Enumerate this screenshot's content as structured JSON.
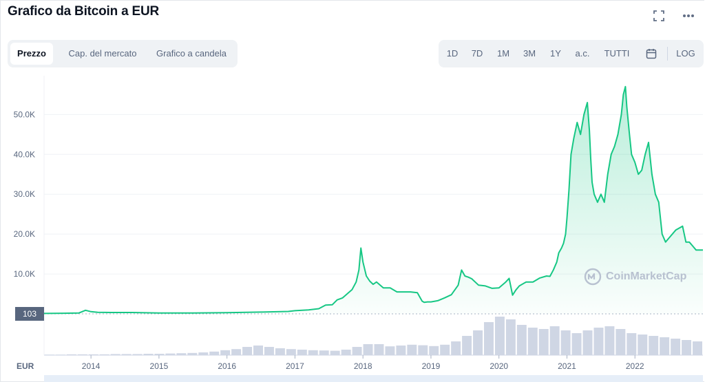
{
  "header": {
    "title": "Grafico da Bitcoin a EUR",
    "fullscreen_icon": "expand-corners-icon",
    "more_icon": "ellipsis-horizontal-icon"
  },
  "tabs": [
    {
      "label": "Prezzo",
      "active": true
    },
    {
      "label": "Cap. del mercato",
      "active": false
    },
    {
      "label": "Grafico a candela",
      "active": false
    }
  ],
  "ranges": [
    "1D",
    "7D",
    "1M",
    "3M",
    "1Y",
    "a.c.",
    "TUTTI"
  ],
  "calendar_icon": "calendar-icon",
  "log_label": "LOG",
  "watermark": "CoinMarketCap",
  "chart_data": {
    "type": "area",
    "currency_label": "EUR",
    "current_price_marker": "103",
    "yticks": [
      "10.0K",
      "20.0K",
      "30.0K",
      "40.0K",
      "50.0K"
    ],
    "ytick_values": [
      10000,
      20000,
      30000,
      40000,
      50000
    ],
    "ylim": [
      0,
      58000
    ],
    "xlim": [
      2013.31,
      2023.0
    ],
    "xticks": [
      "2014",
      "2015",
      "2016",
      "2017",
      "2018",
      "2019",
      "2020",
      "2021",
      "2022"
    ],
    "xtick_values": [
      2014,
      2015,
      2016,
      2017,
      2018,
      2019,
      2020,
      2021,
      2022
    ],
    "colors": {
      "line": "#16c784",
      "volume": "#cfd6e4",
      "grid": "#eff2f5"
    },
    "series": [
      {
        "x": [
          2013.31,
          2013.6,
          2013.82,
          2013.92,
          2014.0,
          2014.1,
          2014.3,
          2014.6,
          2015.0,
          2015.5,
          2016.0,
          2016.5,
          2016.9,
          2017.0,
          2017.2,
          2017.35,
          2017.45,
          2017.55,
          2017.62,
          2017.7,
          2017.78,
          2017.84,
          2017.9,
          2017.94,
          2017.97,
          2018.0,
          2018.05,
          2018.1,
          2018.15,
          2018.2,
          2018.3,
          2018.4,
          2018.5,
          2018.6,
          2018.7,
          2018.8,
          2018.87,
          2018.9,
          2018.95,
          2019.0,
          2019.1,
          2019.2,
          2019.3,
          2019.4,
          2019.45,
          2019.5,
          2019.55,
          2019.6,
          2019.7,
          2019.8,
          2019.9,
          2020.0,
          2020.1,
          2020.15,
          2020.2,
          2020.25,
          2020.3,
          2020.4,
          2020.5,
          2020.6,
          2020.7,
          2020.75,
          2020.8,
          2020.85,
          2020.88,
          2020.92,
          2020.95,
          2020.98,
          2021.0,
          2021.03,
          2021.06,
          2021.1,
          2021.15,
          2021.2,
          2021.25,
          2021.3,
          2021.33,
          2021.35,
          2021.37,
          2021.4,
          2021.45,
          2021.5,
          2021.55,
          2021.6,
          2021.65,
          2021.7,
          2021.75,
          2021.8,
          2021.83,
          2021.86,
          2021.88,
          2021.92,
          2021.95,
          2022.0,
          2022.05,
          2022.1,
          2022.15,
          2022.2,
          2022.25,
          2022.3,
          2022.35,
          2022.4,
          2022.45,
          2022.5,
          2022.6,
          2022.7,
          2022.75,
          2022.8,
          2022.85,
          2022.9,
          2023.0
        ],
        "values": [
          100,
          150,
          200,
          900,
          550,
          400,
          350,
          350,
          200,
          200,
          300,
          450,
          600,
          800,
          1000,
          1300,
          2200,
          2300,
          3500,
          4000,
          5200,
          6100,
          8000,
          11000,
          16500,
          13000,
          9500,
          8200,
          7400,
          8000,
          6500,
          6500,
          5500,
          5500,
          5500,
          5300,
          3200,
          2900,
          3000,
          3000,
          3300,
          4000,
          4800,
          7200,
          11000,
          9500,
          9200,
          8800,
          7200,
          7000,
          6400,
          6500,
          8000,
          8900,
          4700,
          6000,
          7000,
          8000,
          8000,
          9000,
          9500,
          9400,
          11000,
          13000,
          15300,
          16500,
          17700,
          20000,
          24000,
          31000,
          40000,
          44000,
          48000,
          45000,
          50000,
          53000,
          46000,
          39000,
          33000,
          30000,
          28000,
          30000,
          28000,
          35000,
          40000,
          42000,
          45000,
          50000,
          55000,
          57000,
          52000,
          45000,
          40000,
          38000,
          35000,
          36000,
          40000,
          43000,
          35000,
          30000,
          28000,
          20000,
          18000,
          19000,
          21000,
          22000,
          18000,
          18000,
          17000,
          16000,
          16000
        ]
      }
    ],
    "volume_values": [
      0.2,
      0.2,
      0.3,
      0.3,
      0.3,
      0.3,
      0.4,
      0.4,
      0.4,
      0.5,
      0.5,
      0.6,
      0.7,
      0.8,
      1.0,
      1.3,
      1.8,
      2.2,
      3.0,
      3.5,
      3.0,
      2.5,
      2.2,
      2.0,
      1.8,
      1.7,
      1.6,
      2.0,
      3.0,
      4.0,
      4.0,
      3.2,
      3.5,
      3.8,
      3.6,
      3.3,
      3.8,
      5.0,
      7.0,
      9.0,
      12.0,
      14.0,
      13.0,
      11.0,
      10.0,
      9.5,
      10.5,
      9.0,
      8.0,
      9.0,
      10.0,
      10.5,
      9.5,
      8.0,
      7.5,
      7.0,
      6.5,
      6.0,
      5.5,
      5.0
    ]
  }
}
